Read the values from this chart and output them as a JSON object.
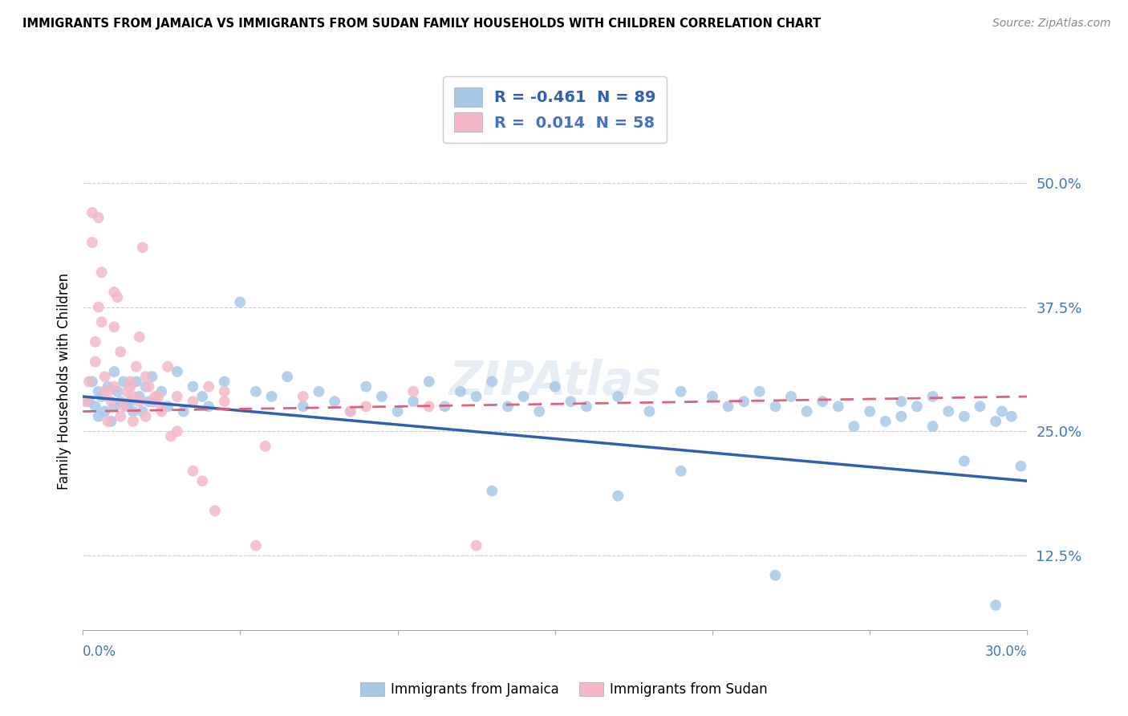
{
  "title": "IMMIGRANTS FROM JAMAICA VS IMMIGRANTS FROM SUDAN FAMILY HOUSEHOLDS WITH CHILDREN CORRELATION CHART",
  "source": "Source: ZipAtlas.com",
  "ylabel_label": "Family Households with Children",
  "xlim": [
    0.0,
    30.0
  ],
  "ylim": [
    5.0,
    55.0
  ],
  "yticks": [
    12.5,
    25.0,
    37.5,
    50.0
  ],
  "legend_r_jamaica": "-0.461",
  "legend_n_jamaica": "89",
  "legend_r_sudan": "0.014",
  "legend_n_sudan": "58",
  "color_jamaica": "#a8c8e8",
  "color_sudan": "#f4b8c8",
  "color_jamaica_line": "#3060b0",
  "color_sudan_line": "#e06080",
  "color_axis_text": "#4472c4",
  "jamaica_x": [
    0.2,
    0.3,
    0.4,
    0.5,
    0.5,
    0.6,
    0.7,
    0.8,
    0.9,
    1.0,
    1.0,
    1.1,
    1.2,
    1.3,
    1.4,
    1.5,
    1.5,
    1.6,
    1.7,
    1.8,
    1.9,
    2.0,
    2.1,
    2.2,
    2.3,
    2.5,
    2.7,
    3.0,
    3.2,
    3.5,
    3.8,
    4.0,
    4.5,
    5.0,
    5.5,
    6.0,
    6.5,
    7.0,
    7.5,
    8.0,
    8.5,
    9.0,
    9.5,
    10.0,
    10.5,
    11.0,
    11.5,
    12.0,
    12.5,
    13.0,
    13.5,
    14.0,
    14.5,
    15.0,
    15.5,
    16.0,
    17.0,
    18.0,
    19.0,
    20.0,
    20.5,
    21.0,
    21.5,
    22.0,
    22.5,
    23.0,
    23.5,
    24.0,
    25.0,
    26.0,
    26.5,
    27.0,
    27.5,
    28.0,
    28.5,
    29.0,
    29.2,
    29.5,
    13.0,
    17.0,
    19.0,
    22.0,
    24.5,
    25.5,
    26.0,
    27.0,
    28.0,
    29.0,
    29.8
  ],
  "jamaica_y": [
    28.0,
    30.0,
    27.5,
    29.0,
    26.5,
    28.5,
    27.0,
    29.5,
    26.0,
    31.0,
    27.5,
    29.0,
    28.0,
    30.0,
    27.5,
    29.5,
    28.0,
    27.0,
    30.0,
    28.5,
    27.0,
    29.5,
    28.0,
    30.5,
    28.0,
    29.0,
    27.5,
    31.0,
    27.0,
    29.5,
    28.5,
    27.5,
    30.0,
    38.0,
    29.0,
    28.5,
    30.5,
    27.5,
    29.0,
    28.0,
    27.0,
    29.5,
    28.5,
    27.0,
    28.0,
    30.0,
    27.5,
    29.0,
    28.5,
    30.0,
    27.5,
    28.5,
    27.0,
    29.5,
    28.0,
    27.5,
    28.5,
    27.0,
    29.0,
    28.5,
    27.5,
    28.0,
    29.0,
    27.5,
    28.5,
    27.0,
    28.0,
    27.5,
    27.0,
    28.0,
    27.5,
    28.5,
    27.0,
    26.5,
    27.5,
    26.0,
    27.0,
    26.5,
    19.0,
    18.5,
    21.0,
    10.5,
    25.5,
    26.0,
    26.5,
    25.5,
    22.0,
    7.5,
    21.5
  ],
  "sudan_x": [
    0.1,
    0.2,
    0.3,
    0.4,
    0.5,
    0.6,
    0.7,
    0.8,
    0.9,
    1.0,
    1.0,
    1.1,
    1.2,
    1.3,
    1.4,
    1.5,
    1.6,
    1.7,
    1.8,
    1.9,
    2.0,
    2.1,
    2.2,
    2.4,
    2.5,
    2.7,
    3.0,
    3.5,
    4.0,
    4.5,
    0.5,
    1.0,
    1.5,
    2.0,
    2.5,
    3.0,
    3.8,
    5.5,
    7.0,
    9.0,
    11.0,
    1.2,
    2.8,
    4.2,
    0.4,
    0.6,
    0.8,
    1.6,
    2.3,
    3.5,
    5.8,
    8.5,
    10.5,
    12.5,
    0.3,
    0.7,
    1.8,
    4.5
  ],
  "sudan_y": [
    28.0,
    30.0,
    44.0,
    32.0,
    37.5,
    41.0,
    30.5,
    29.0,
    28.0,
    29.5,
    35.5,
    38.5,
    33.0,
    27.5,
    29.0,
    29.5,
    28.5,
    31.5,
    34.5,
    43.5,
    30.5,
    29.5,
    28.0,
    28.5,
    27.5,
    31.5,
    28.5,
    28.0,
    29.5,
    28.0,
    46.5,
    39.0,
    30.0,
    26.5,
    27.0,
    25.0,
    20.0,
    13.5,
    28.5,
    27.5,
    27.5,
    26.5,
    24.5,
    17.0,
    34.0,
    36.0,
    26.0,
    26.0,
    28.5,
    21.0,
    23.5,
    27.0,
    29.0,
    13.5,
    47.0,
    29.0,
    28.0,
    29.0
  ]
}
